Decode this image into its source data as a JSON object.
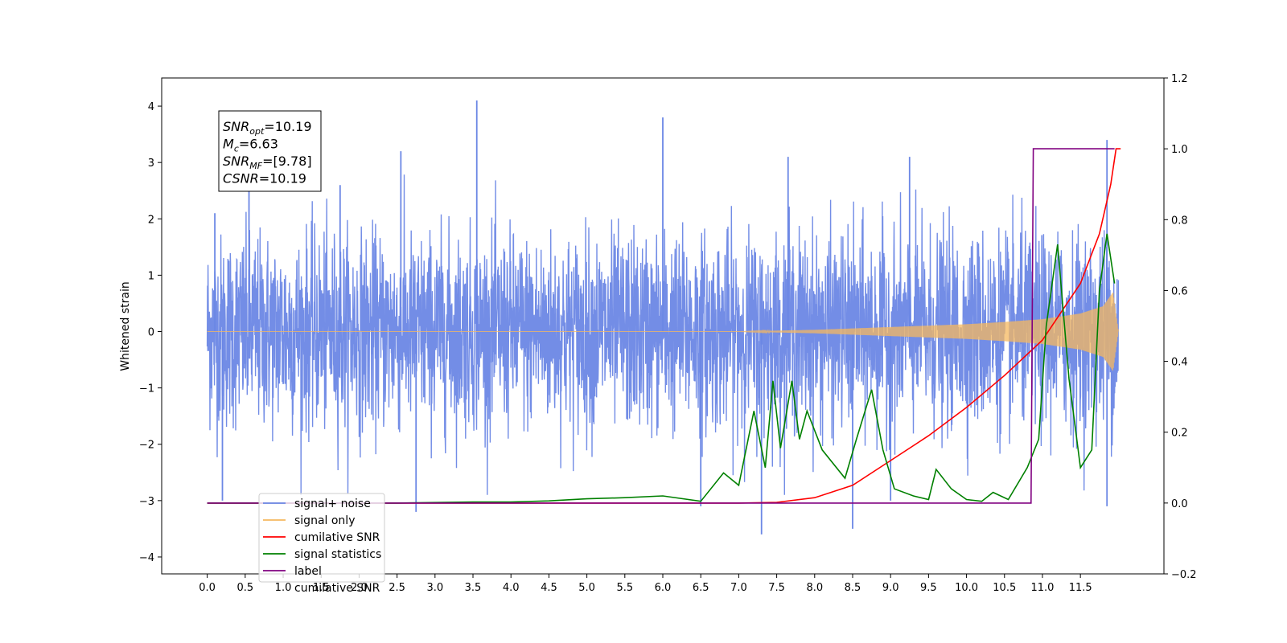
{
  "chart_data": {
    "type": "line",
    "xlabel": "",
    "ylabel_left": "Whitened strain",
    "ylabel_right": "",
    "xlim": [
      -0.6,
      12.6
    ],
    "ylim_left": [
      -4.3,
      4.5
    ],
    "ylim_right": [
      -0.2,
      1.2
    ],
    "x_ticks": [
      "0.0",
      "0.5",
      "1.0",
      "1.5",
      "2.0",
      "2.5",
      "3.0",
      "3.5",
      "4.0",
      "4.5",
      "5.0",
      "5.5",
      "6.0",
      "6.5",
      "7.0",
      "7.5",
      "8.0",
      "8.5",
      "9.0",
      "9.5",
      "10.0",
      "10.5",
      "11.0",
      "11.5"
    ],
    "y_ticks_left": [
      "−4",
      "−3",
      "−2",
      "−1",
      "0",
      "1",
      "2",
      "3",
      "4"
    ],
    "y_ticks_right": [
      "−0.2",
      "0.0",
      "0.2",
      "0.4",
      "0.6",
      "0.8",
      "1.0",
      "1.2"
    ],
    "grid": false,
    "legend_position": "lower-left",
    "series": [
      {
        "name": "signal+ noise",
        "axis": "left",
        "color": "#6b87e5",
        "x_range": [
          0.0,
          12.0
        ],
        "envelope": "noise",
        "peaks": [
          [
            0.1,
            2.1
          ],
          [
            0.55,
            2.5
          ],
          [
            1.75,
            2.6
          ],
          [
            2.55,
            3.2
          ],
          [
            3.55,
            4.1
          ],
          [
            6.0,
            3.8
          ],
          [
            7.65,
            3.1
          ],
          [
            9.25,
            3.1
          ],
          [
            11.85,
            3.4
          ],
          [
            0.2,
            -3.0
          ],
          [
            2.75,
            -3.2
          ],
          [
            7.3,
            -3.6
          ],
          [
            8.5,
            -3.5
          ],
          [
            9.0,
            -3.0
          ],
          [
            11.85,
            -3.1
          ],
          [
            6.5,
            -3.1
          ]
        ]
      },
      {
        "name": "signal only",
        "axis": "left",
        "color": "#f5b85f",
        "x_range": [
          0.0,
          12.0
        ],
        "envelope": "chirp",
        "amplitude_at": [
          [
            7.0,
            0.0
          ],
          [
            8.0,
            0.03
          ],
          [
            9.0,
            0.08
          ],
          [
            10.0,
            0.13
          ],
          [
            10.5,
            0.17
          ],
          [
            11.0,
            0.22
          ],
          [
            11.5,
            0.32
          ],
          [
            11.8,
            0.45
          ],
          [
            11.93,
            0.7
          ],
          [
            12.0,
            0.0
          ]
        ]
      },
      {
        "name": "cumilative SNR",
        "axis": "right",
        "color": "#ff0000",
        "points": [
          [
            0.0,
            0.0
          ],
          [
            7.0,
            0.0
          ],
          [
            7.5,
            0.002
          ],
          [
            8.0,
            0.015
          ],
          [
            8.5,
            0.05
          ],
          [
            9.0,
            0.12
          ],
          [
            9.5,
            0.19
          ],
          [
            10.0,
            0.27
          ],
          [
            10.5,
            0.36
          ],
          [
            11.0,
            0.46
          ],
          [
            11.5,
            0.62
          ],
          [
            11.75,
            0.76
          ],
          [
            11.9,
            0.9
          ],
          [
            11.97,
            1.0
          ],
          [
            12.03,
            1.0
          ]
        ]
      },
      {
        "name": "signal statistics",
        "axis": "right",
        "color": "#008000",
        "points": [
          [
            0.0,
            0.0
          ],
          [
            2.5,
            0.0
          ],
          [
            3.5,
            0.003
          ],
          [
            4.0,
            0.003
          ],
          [
            4.5,
            0.006
          ],
          [
            5.0,
            0.012
          ],
          [
            5.5,
            0.015
          ],
          [
            6.0,
            0.02
          ],
          [
            6.5,
            0.005
          ],
          [
            6.8,
            0.085
          ],
          [
            7.0,
            0.05
          ],
          [
            7.2,
            0.26
          ],
          [
            7.35,
            0.1
          ],
          [
            7.45,
            0.345
          ],
          [
            7.55,
            0.155
          ],
          [
            7.7,
            0.345
          ],
          [
            7.8,
            0.18
          ],
          [
            7.9,
            0.26
          ],
          [
            8.1,
            0.15
          ],
          [
            8.4,
            0.07
          ],
          [
            8.55,
            0.18
          ],
          [
            8.75,
            0.32
          ],
          [
            8.9,
            0.15
          ],
          [
            9.05,
            0.04
          ],
          [
            9.3,
            0.02
          ],
          [
            9.5,
            0.01
          ],
          [
            9.6,
            0.095
          ],
          [
            9.8,
            0.04
          ],
          [
            10.0,
            0.01
          ],
          [
            10.2,
            0.005
          ],
          [
            10.35,
            0.03
          ],
          [
            10.55,
            0.01
          ],
          [
            10.8,
            0.1
          ],
          [
            10.95,
            0.18
          ],
          [
            11.05,
            0.5
          ],
          [
            11.2,
            0.73
          ],
          [
            11.35,
            0.35
          ],
          [
            11.5,
            0.1
          ],
          [
            11.65,
            0.15
          ],
          [
            11.75,
            0.6
          ],
          [
            11.85,
            0.76
          ],
          [
            11.95,
            0.62
          ]
        ]
      },
      {
        "name": "label",
        "axis": "right",
        "color": "#800080",
        "points": [
          [
            0.0,
            0.0
          ],
          [
            10.85,
            0.0
          ],
          [
            10.88,
            1.0
          ],
          [
            11.95,
            1.0
          ]
        ]
      },
      {
        "name": "cumilative SNR",
        "axis": "right",
        "color": "#d3d3d3",
        "points": []
      }
    ],
    "annotation": {
      "lines": [
        {
          "label": "SNR",
          "sub": "opt",
          "value": "=10.19"
        },
        {
          "label": "M",
          "sub": "c",
          "value": "=6.63"
        },
        {
          "label": "SNR",
          "sub": "MF",
          "value": "=[9.78]"
        },
        {
          "label": "CSNR",
          "sub": "",
          "value": "=10.19"
        }
      ]
    }
  }
}
